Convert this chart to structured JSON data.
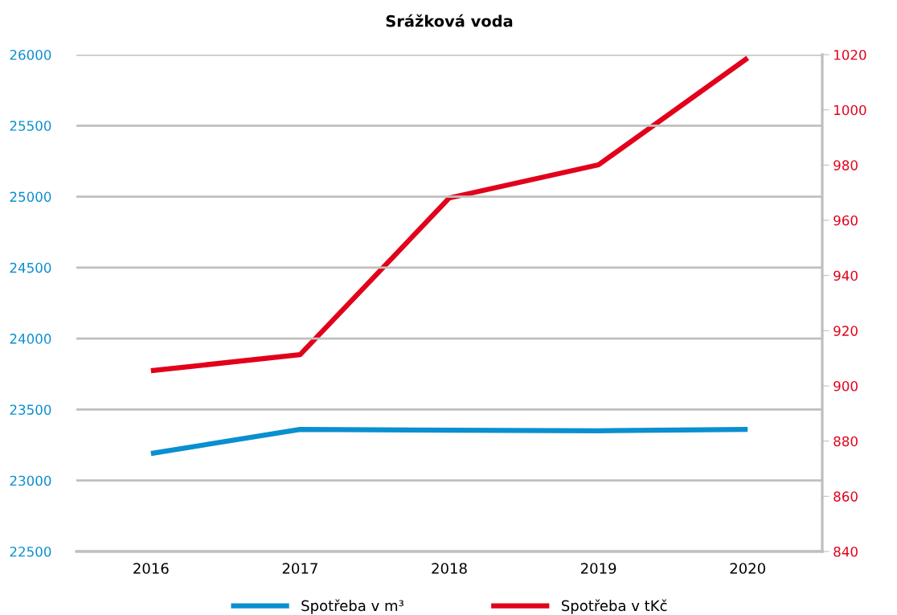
{
  "chart_data": {
    "type": "line",
    "title": "Srážková voda",
    "categories": [
      "2016",
      "2017",
      "2018",
      "2019",
      "2020"
    ],
    "series": [
      {
        "name": "Spotřeba v m³",
        "color": "#0a8fd0",
        "values": [
          23190,
          23360,
          23355,
          23350,
          23360
        ]
      },
      {
        "name": "Spotřeba v tKč",
        "color": "#e2001a",
        "axis": "y2",
        "values": [
          905.5,
          911.3,
          968.1,
          980.1,
          1018.8
        ]
      }
    ],
    "ylim": [
      22500,
      26000
    ],
    "yticks": [
      22500,
      23000,
      23500,
      24000,
      24500,
      25000,
      25500,
      26000
    ],
    "y2lim": [
      840,
      1020
    ],
    "y2ticks": [
      840,
      860,
      880,
      900,
      920,
      940,
      960,
      980,
      1000,
      1020
    ],
    "grid": "y",
    "legend": "bottom",
    "marker": "none",
    "line_style": "solid"
  }
}
